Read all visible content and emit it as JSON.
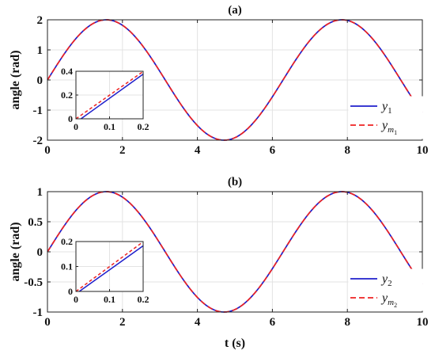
{
  "chart_data": [
    {
      "type": "line",
      "title": "(a)",
      "xlabel": "",
      "ylabel": "angle (rad)",
      "xlim": [
        0,
        10
      ],
      "ylim": [
        -2,
        2
      ],
      "xticks": [
        0,
        2,
        4,
        6,
        8,
        10
      ],
      "yticks": [
        -2,
        -1,
        0,
        1,
        2
      ],
      "grid": true,
      "legend": {
        "placement": "bottom-right",
        "entries": [
          {
            "main": "y",
            "sub": "1",
            "subsub": "",
            "color": "#1f1fcc",
            "dash": "solid"
          },
          {
            "main": "y",
            "sub": "m",
            "subsub": "1",
            "color": "#ee2222",
            "dash": "dashed"
          }
        ]
      },
      "series": [
        {
          "function": "2*sin(t)",
          "color": "#1f1fcc",
          "dash": "solid"
        },
        {
          "function": "2*sin(t)",
          "color": "#ee2222",
          "dash": "dashed"
        }
      ],
      "inset": {
        "xlim": [
          0,
          0.2
        ],
        "ylim": [
          0,
          0.4
        ],
        "xticks": [
          0,
          0.1,
          0.2
        ],
        "xticklabels": [
          "0",
          "0.1",
          "0.2"
        ],
        "yticks": [
          0,
          0.2,
          0.4
        ],
        "yticklabels": [
          "0",
          "0.2",
          "0.4"
        ],
        "series": [
          {
            "x": [
              0.015,
              0.2
            ],
            "y": [
              0,
              0.376
            ],
            "color": "#1f1fcc",
            "dash": "solid"
          },
          {
            "x": [
              0,
              0.2
            ],
            "y": [
              0,
              0.398
            ],
            "color": "#ee2222",
            "dash": "dashed"
          }
        ]
      }
    },
    {
      "type": "line",
      "title": "(b)",
      "xlabel": "t (s)",
      "ylabel": "angle (rad)",
      "xlim": [
        0,
        10
      ],
      "ylim": [
        -1,
        1
      ],
      "xticks": [
        0,
        2,
        4,
        6,
        8,
        10
      ],
      "yticks": [
        -1,
        -0.5,
        0,
        0.5,
        1
      ],
      "grid": true,
      "legend": {
        "placement": "bottom-right",
        "entries": [
          {
            "main": "y",
            "sub": "2",
            "subsub": "",
            "color": "#1f1fcc",
            "dash": "solid"
          },
          {
            "main": "y",
            "sub": "m",
            "subsub": "2",
            "color": "#ee2222",
            "dash": "dashed"
          }
        ]
      },
      "series": [
        {
          "function": "sin(t)",
          "color": "#1f1fcc",
          "dash": "solid"
        },
        {
          "function": "sin(t)",
          "color": "#ee2222",
          "dash": "dashed"
        }
      ],
      "inset": {
        "xlim": [
          0,
          0.2
        ],
        "ylim": [
          0,
          0.2
        ],
        "xticks": [
          0,
          0.1,
          0.2
        ],
        "xticklabels": [
          "0",
          "0.1",
          "0.2"
        ],
        "yticks": [
          0,
          0.1,
          0.2
        ],
        "yticklabels": [
          "0",
          "0.1",
          "0.2"
        ],
        "series": [
          {
            "x": [
              0.01,
              0.2
            ],
            "y": [
              0,
              0.183
            ],
            "color": "#1f1fcc",
            "dash": "solid"
          },
          {
            "x": [
              0,
              0.2
            ],
            "y": [
              0,
              0.199
            ],
            "color": "#ee2222",
            "dash": "dashed"
          }
        ]
      }
    }
  ]
}
